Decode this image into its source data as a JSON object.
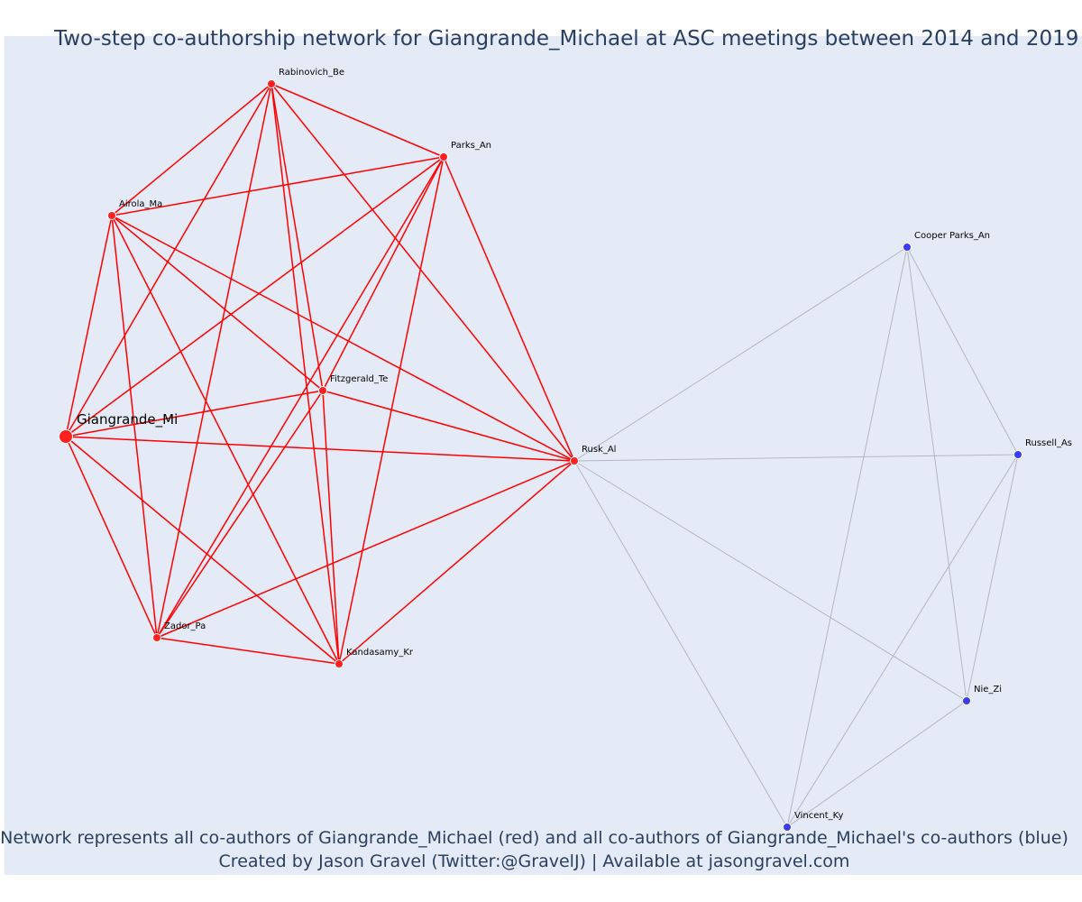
{
  "title": "Two-step co-authorship network for Giangrande_Michael at ASC meetings between 2014 and 2019",
  "captions": {
    "line1": "Network represents all co-authors of Giangrande_Michael (red) and all co-authors of Giangrande_Michael's co-authors (blue)",
    "line2": "Created by Jason Gravel (Twitter:@GravelJ) | Available at jasongravel.com"
  },
  "colors": {
    "background": "#e5ebf6",
    "primary_node": "#ff2020",
    "primary_edge": "#ff0000",
    "secondary_node": "#3b3bf0",
    "secondary_edge": "#b3b6c4",
    "text": "#2a3f5f"
  },
  "nodes": [
    {
      "id": "Giangrande_Mi",
      "label": "Giangrande_Mi",
      "group": "focal"
    },
    {
      "id": "Rabinovich_Be",
      "label": "Rabinovich_Be",
      "group": "coauthor"
    },
    {
      "id": "Parks_An",
      "label": "Parks_An",
      "group": "coauthor"
    },
    {
      "id": "Airola_Ma",
      "label": "Airola_Ma",
      "group": "coauthor"
    },
    {
      "id": "Fitzgerald_Te",
      "label": "Fitzgerald_Te",
      "group": "coauthor"
    },
    {
      "id": "Rusk_Al",
      "label": "Rusk_Al",
      "group": "coauthor"
    },
    {
      "id": "Zador_Pa",
      "label": "Zador_Pa",
      "group": "coauthor"
    },
    {
      "id": "Kandasamy_Kr",
      "label": "Kandasamy_Kr",
      "group": "coauthor"
    },
    {
      "id": "Cooper Parks_An",
      "label": "Cooper Parks_An",
      "group": "second"
    },
    {
      "id": "Russell_As",
      "label": "Russell_As",
      "group": "second"
    },
    {
      "id": "Nie_Zi",
      "label": "Nie_Zi",
      "group": "second"
    },
    {
      "id": "Vincent_Ky",
      "label": "Vincent_Ky",
      "group": "second"
    }
  ],
  "edges": [
    [
      "Giangrande_Mi",
      "Rabinovich_Be"
    ],
    [
      "Giangrande_Mi",
      "Parks_An"
    ],
    [
      "Giangrande_Mi",
      "Airola_Ma"
    ],
    [
      "Giangrande_Mi",
      "Fitzgerald_Te"
    ],
    [
      "Giangrande_Mi",
      "Rusk_Al"
    ],
    [
      "Giangrande_Mi",
      "Zador_Pa"
    ],
    [
      "Giangrande_Mi",
      "Kandasamy_Kr"
    ],
    [
      "Rabinovich_Be",
      "Parks_An"
    ],
    [
      "Rabinovich_Be",
      "Airola_Ma"
    ],
    [
      "Rabinovich_Be",
      "Fitzgerald_Te"
    ],
    [
      "Rabinovich_Be",
      "Rusk_Al"
    ],
    [
      "Rabinovich_Be",
      "Zador_Pa"
    ],
    [
      "Rabinovich_Be",
      "Kandasamy_Kr"
    ],
    [
      "Parks_An",
      "Airola_Ma"
    ],
    [
      "Parks_An",
      "Fitzgerald_Te"
    ],
    [
      "Parks_An",
      "Rusk_Al"
    ],
    [
      "Parks_An",
      "Zador_Pa"
    ],
    [
      "Parks_An",
      "Kandasamy_Kr"
    ],
    [
      "Airola_Ma",
      "Fitzgerald_Te"
    ],
    [
      "Airola_Ma",
      "Rusk_Al"
    ],
    [
      "Airola_Ma",
      "Zador_Pa"
    ],
    [
      "Airola_Ma",
      "Kandasamy_Kr"
    ],
    [
      "Fitzgerald_Te",
      "Rusk_Al"
    ],
    [
      "Fitzgerald_Te",
      "Zador_Pa"
    ],
    [
      "Fitzgerald_Te",
      "Kandasamy_Kr"
    ],
    [
      "Rusk_Al",
      "Zador_Pa"
    ],
    [
      "Rusk_Al",
      "Kandasamy_Kr"
    ],
    [
      "Zador_Pa",
      "Kandasamy_Kr"
    ],
    [
      "Rusk_Al",
      "Cooper Parks_An"
    ],
    [
      "Rusk_Al",
      "Russell_As"
    ],
    [
      "Rusk_Al",
      "Nie_Zi"
    ],
    [
      "Rusk_Al",
      "Vincent_Ky"
    ],
    [
      "Cooper Parks_An",
      "Russell_As"
    ],
    [
      "Cooper Parks_An",
      "Nie_Zi"
    ],
    [
      "Cooper Parks_An",
      "Vincent_Ky"
    ],
    [
      "Russell_As",
      "Nie_Zi"
    ],
    [
      "Russell_As",
      "Vincent_Ky"
    ],
    [
      "Nie_Zi",
      "Vincent_Ky"
    ]
  ]
}
